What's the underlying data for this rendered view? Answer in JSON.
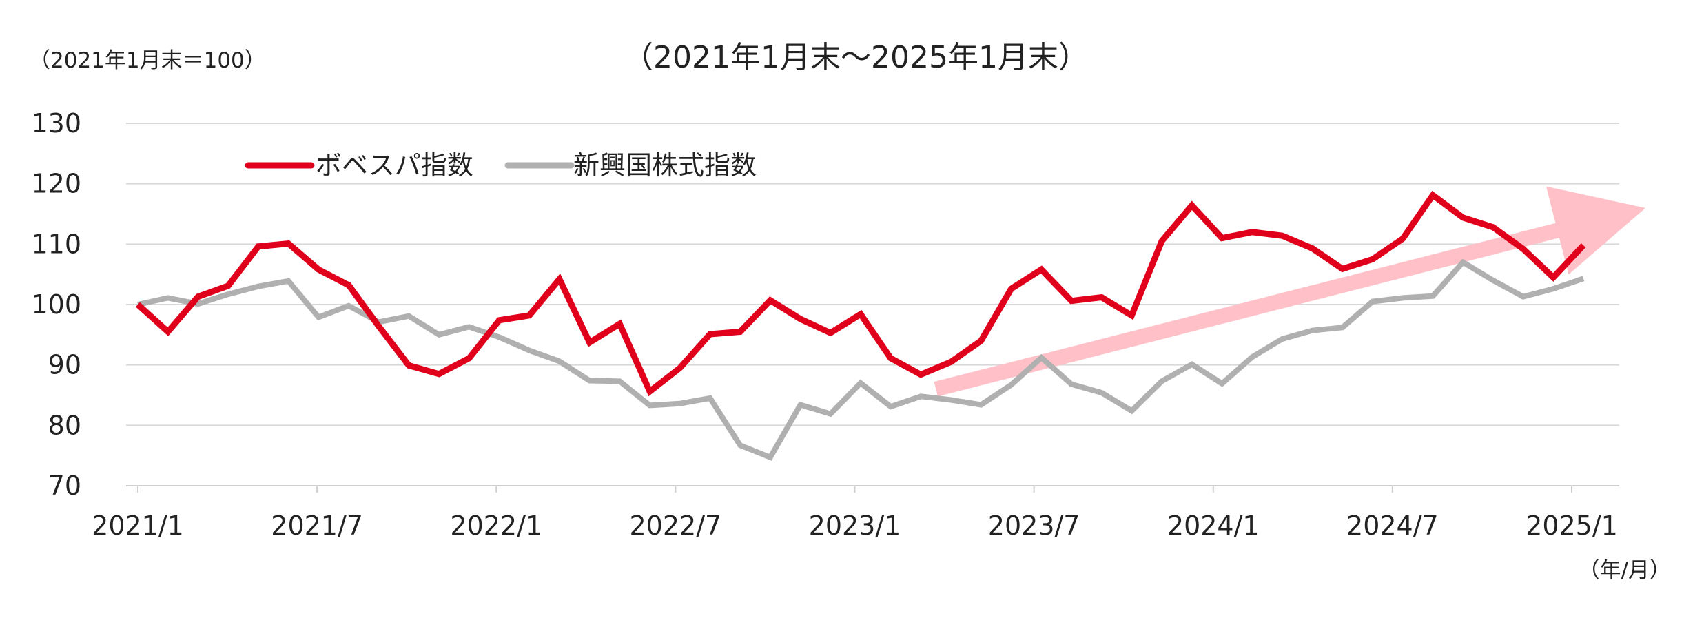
{
  "chart_data": {
    "type": "line",
    "title": "（2021年1月末～2025年1月末）",
    "ylabel": "（2021年1月末＝100）",
    "xlabel": "（年/月）",
    "ylim": [
      70,
      130
    ],
    "yticks": [
      130,
      120,
      110,
      100,
      90,
      80,
      70
    ],
    "xticks": [
      "2021/1",
      "2021/7",
      "2022/1",
      "2022/7",
      "2023/1",
      "2023/7",
      "2024/1",
      "2024/7",
      "2025/1"
    ],
    "x_months": 49,
    "grid": true,
    "legend_position": "top-left",
    "trend_arrow": {
      "from": {
        "month": 27,
        "value": 86
      },
      "to": {
        "month": 49,
        "value": 114
      },
      "color": "#ffc0c8"
    },
    "series": [
      {
        "name": "ボベスパ指数",
        "color": "#e0001b",
        "values": [
          100,
          95.5,
          101.3,
          103.1,
          109.6,
          110.1,
          105.8,
          103.2,
          96.4,
          89.9,
          88.5,
          91.1,
          97.4,
          98.2,
          104.2,
          93.7,
          96.8,
          85.6,
          89.5,
          95.1,
          95.5,
          100.7,
          97.6,
          95.3,
          98.4,
          91.1,
          88.4,
          90.5,
          94.0,
          102.6,
          105.8,
          100.6,
          101.2,
          98.2,
          110.5,
          116.4,
          111.0,
          112.0,
          111.4,
          109.3,
          105.9,
          107.5,
          110.9,
          118.1,
          114.4,
          112.8,
          109.2,
          104.5,
          109.8
        ]
      },
      {
        "name": "新興国株式指数",
        "color": "#b0b0b0",
        "values": [
          100,
          101.1,
          100.1,
          101.7,
          103.0,
          103.9,
          97.9,
          99.8,
          97.1,
          98.1,
          95.0,
          96.3,
          94.6,
          92.4,
          90.6,
          87.4,
          87.3,
          83.3,
          83.6,
          84.5,
          76.7,
          74.7,
          83.4,
          81.9,
          87.0,
          83.1,
          84.8,
          84.2,
          83.4,
          86.7,
          91.2,
          86.8,
          85.4,
          82.4,
          87.3,
          90.1,
          86.9,
          91.3,
          94.3,
          95.7,
          96.2,
          100.5,
          101.1,
          101.4,
          107.0,
          104.0,
          101.3,
          102.6,
          104.3
        ]
      }
    ]
  }
}
